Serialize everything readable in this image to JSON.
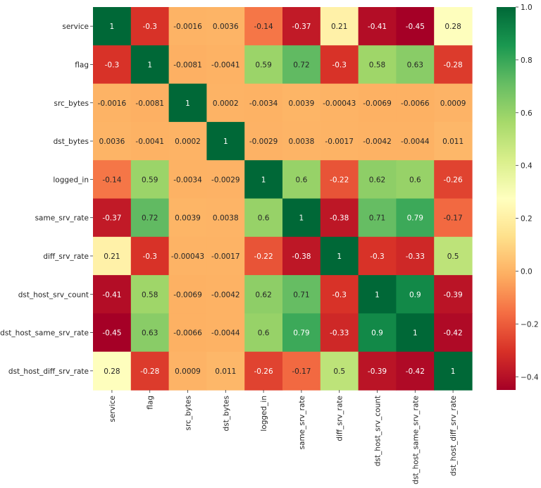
{
  "chart_data": {
    "type": "heatmap",
    "title": "",
    "xlabel": "",
    "ylabel": "",
    "rows": [
      "service",
      "flag",
      "src_bytes",
      "dst_bytes",
      "logged_in",
      "same_srv_rate",
      "diff_srv_rate",
      "dst_host_srv_count",
      "dst_host_same_srv_rate",
      "dst_host_diff_srv_rate"
    ],
    "columns": [
      "service",
      "flag",
      "src_bytes",
      "dst_bytes",
      "logged_in",
      "same_srv_rate",
      "diff_srv_rate",
      "dst_host_srv_count",
      "dst_host_same_srv_rate",
      "dst_host_diff_srv_rate"
    ],
    "values": [
      [
        1,
        -0.3,
        -0.0016,
        0.0036,
        -0.14,
        -0.37,
        0.21,
        -0.41,
        -0.45,
        0.28
      ],
      [
        -0.3,
        1,
        -0.0081,
        -0.0041,
        0.59,
        0.72,
        -0.3,
        0.58,
        0.63,
        -0.28
      ],
      [
        -0.0016,
        -0.0081,
        1,
        0.0002,
        -0.0034,
        0.0039,
        -0.00043,
        -0.0069,
        -0.0066,
        0.0009
      ],
      [
        0.0036,
        -0.0041,
        0.0002,
        1,
        -0.0029,
        0.0038,
        -0.0017,
        -0.0042,
        -0.0044,
        0.011
      ],
      [
        -0.14,
        0.59,
        -0.0034,
        -0.0029,
        1,
        0.6,
        -0.22,
        0.62,
        0.6,
        -0.26
      ],
      [
        -0.37,
        0.72,
        0.0039,
        0.0038,
        0.6,
        1,
        -0.38,
        0.71,
        0.79,
        -0.17
      ],
      [
        0.21,
        -0.3,
        -0.00043,
        -0.0017,
        -0.22,
        -0.38,
        1,
        -0.3,
        -0.33,
        0.5
      ],
      [
        -0.41,
        0.58,
        -0.0069,
        -0.0042,
        0.62,
        0.71,
        -0.3,
        1,
        0.9,
        -0.39
      ],
      [
        -0.45,
        0.63,
        -0.0066,
        -0.0044,
        0.6,
        0.79,
        -0.33,
        0.9,
        1,
        -0.42
      ],
      [
        0.28,
        -0.28,
        0.0009,
        0.011,
        -0.26,
        -0.17,
        0.5,
        -0.39,
        -0.42,
        1
      ]
    ],
    "annotations": [
      [
        "1",
        "-0.3",
        "-0.0016",
        "0.0036",
        "-0.14",
        "-0.37",
        "0.21",
        "-0.41",
        "-0.45",
        "0.28"
      ],
      [
        "-0.3",
        "1",
        "-0.0081",
        "-0.0041",
        "0.59",
        "0.72",
        "-0.3",
        "0.58",
        "0.63",
        "-0.28"
      ],
      [
        "-0.0016",
        "-0.0081",
        "1",
        "0.0002",
        "-0.0034",
        "0.0039",
        "-0.00043",
        "-0.0069",
        "-0.0066",
        "0.0009"
      ],
      [
        "0.0036",
        "-0.0041",
        "0.0002",
        "1",
        "-0.0029",
        "0.0038",
        "-0.0017",
        "-0.0042",
        "-0.0044",
        "0.011"
      ],
      [
        "-0.14",
        "0.59",
        "-0.0034",
        "-0.0029",
        "1",
        "0.6",
        "-0.22",
        "0.62",
        "0.6",
        "-0.26"
      ],
      [
        "-0.37",
        "0.72",
        "0.0039",
        "0.0038",
        "0.6",
        "1",
        "-0.38",
        "0.71",
        "0.79",
        "-0.17"
      ],
      [
        "0.21",
        "-0.3",
        "-0.00043",
        "-0.0017",
        "-0.22",
        "-0.38",
        "1",
        "-0.3",
        "-0.33",
        "0.5"
      ],
      [
        "-0.41",
        "0.58",
        "-0.0069",
        "-0.0042",
        "0.62",
        "0.71",
        "-0.3",
        "1",
        "0.9",
        "-0.39"
      ],
      [
        "-0.45",
        "0.63",
        "-0.0066",
        "-0.0044",
        "0.6",
        "0.79",
        "-0.33",
        "0.9",
        "1",
        "-0.42"
      ],
      [
        "0.28",
        "-0.28",
        "0.0009",
        "0.011",
        "-0.26",
        "-0.17",
        "0.5",
        "-0.39",
        "-0.42",
        "1"
      ]
    ],
    "colormap": "RdYlGn",
    "colormap_stops": [
      "#a50026",
      "#d73027",
      "#f46d43",
      "#fdae61",
      "#fee08b",
      "#ffffbf",
      "#d9ef8b",
      "#a6d96a",
      "#66bd63",
      "#1a9850",
      "#006837"
    ],
    "vmin": -0.45,
    "vmax": 1,
    "colorbar": {
      "ticks": [
        1.0,
        0.8,
        0.6,
        0.4,
        0.2,
        0.0,
        -0.2,
        -0.4
      ],
      "tick_labels": [
        "1.0",
        "0.8",
        "0.6",
        "0.4",
        "0.2",
        "0.0",
        "−0.2",
        "−0.4"
      ]
    },
    "grid": false,
    "legend": "colorbar-right"
  }
}
